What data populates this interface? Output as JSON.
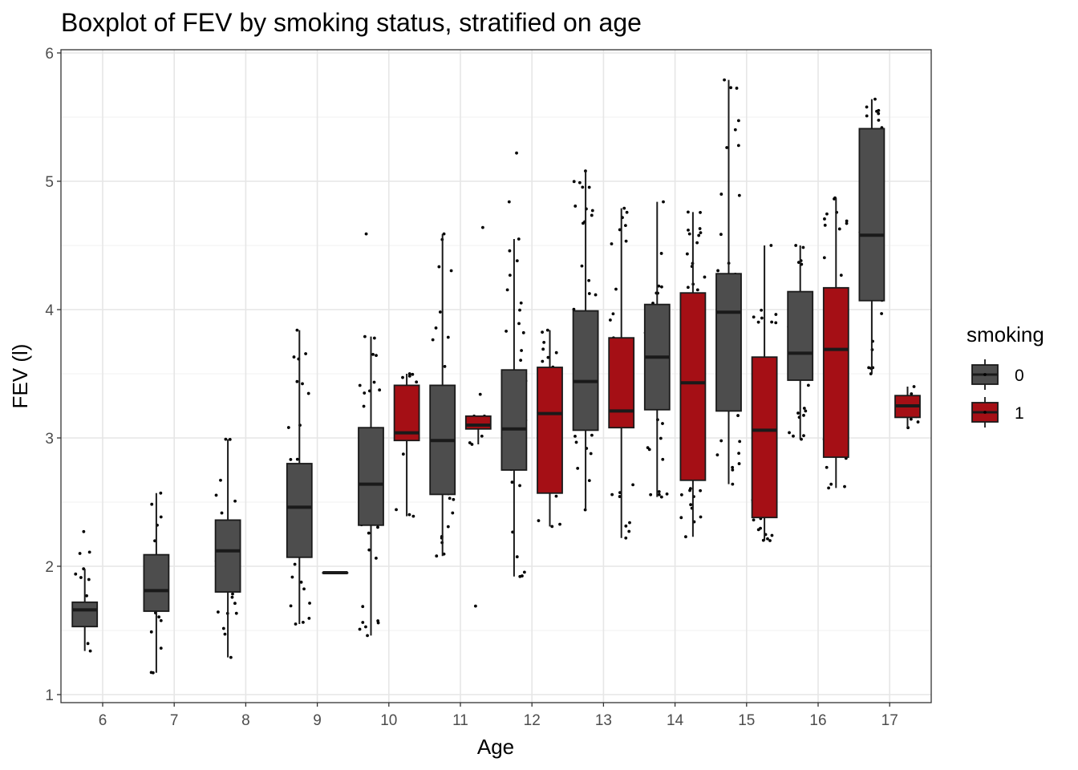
{
  "chart_data": {
    "type": "boxplot",
    "title": "Boxplot of FEV by smoking status, stratified on age",
    "xlabel": "Age",
    "ylabel": "FEV (l)",
    "ylim": [
      1,
      6
    ],
    "yticks": [
      1,
      2,
      3,
      4,
      5,
      6
    ],
    "categories": [
      "6",
      "7",
      "8",
      "9",
      "10",
      "11",
      "12",
      "13",
      "14",
      "15",
      "16",
      "17"
    ],
    "grid": true,
    "legend": {
      "title": "smoking",
      "position": "right"
    },
    "series": [
      {
        "name": "0",
        "color": "#4d4d4d",
        "boxes": [
          {
            "cat": "6",
            "min": 1.34,
            "q1": 1.53,
            "median": 1.66,
            "q3": 1.72,
            "max": 1.98,
            "outliers": [
              2.27,
              2.11,
              2.1
            ]
          },
          {
            "cat": "7",
            "min": 1.17,
            "q1": 1.65,
            "median": 1.81,
            "q3": 2.09,
            "max": 2.57,
            "outliers": []
          },
          {
            "cat": "8",
            "min": 1.29,
            "q1": 1.8,
            "median": 2.12,
            "q3": 2.36,
            "max": 2.99,
            "outliers": []
          },
          {
            "cat": "9",
            "min": 1.55,
            "q1": 2.07,
            "median": 2.46,
            "q3": 2.8,
            "max": 3.84,
            "outliers": []
          },
          {
            "cat": "10",
            "min": 1.46,
            "q1": 2.32,
            "median": 2.64,
            "q3": 3.08,
            "max": 3.79,
            "outliers": [
              4.59
            ]
          },
          {
            "cat": "11",
            "min": 2.08,
            "q1": 2.56,
            "median": 2.98,
            "q3": 3.41,
            "max": 4.59,
            "outliers": []
          },
          {
            "cat": "12",
            "min": 1.92,
            "q1": 2.75,
            "median": 3.07,
            "q3": 3.53,
            "max": 4.55,
            "outliers": [
              4.84,
              5.22
            ]
          },
          {
            "cat": "13",
            "min": 2.44,
            "q1": 3.06,
            "median": 3.44,
            "q3": 3.99,
            "max": 5.08,
            "outliers": []
          },
          {
            "cat": "14",
            "min": 2.54,
            "q1": 3.22,
            "median": 3.63,
            "q3": 4.04,
            "max": 4.84,
            "outliers": []
          },
          {
            "cat": "15",
            "min": 2.64,
            "q1": 3.21,
            "median": 3.98,
            "q3": 4.28,
            "max": 5.79,
            "outliers": []
          },
          {
            "cat": "16",
            "min": 2.99,
            "q1": 3.45,
            "median": 3.66,
            "q3": 4.14,
            "max": 4.5,
            "outliers": []
          },
          {
            "cat": "17",
            "min": 3.5,
            "q1": 4.07,
            "median": 4.58,
            "q3": 5.41,
            "max": 5.64,
            "outliers": []
          }
        ]
      },
      {
        "name": "1",
        "color": "#a50f15",
        "boxes": [
          {
            "cat": "9",
            "min": 1.95,
            "q1": 1.95,
            "median": 1.95,
            "q3": 1.95,
            "max": 1.95,
            "outliers": []
          },
          {
            "cat": "10",
            "min": 2.39,
            "q1": 2.98,
            "median": 3.04,
            "q3": 3.41,
            "max": 3.5,
            "outliers": []
          },
          {
            "cat": "11",
            "min": 2.95,
            "q1": 3.07,
            "median": 3.1,
            "q3": 3.17,
            "max": 3.17,
            "outliers": [
              4.64,
              1.69,
              3.34
            ]
          },
          {
            "cat": "12",
            "min": 2.31,
            "q1": 2.57,
            "median": 3.19,
            "q3": 3.55,
            "max": 3.84,
            "outliers": []
          },
          {
            "cat": "13",
            "min": 2.22,
            "q1": 3.08,
            "median": 3.21,
            "q3": 3.78,
            "max": 4.79,
            "outliers": []
          },
          {
            "cat": "14",
            "min": 2.23,
            "q1": 2.67,
            "median": 3.43,
            "q3": 4.13,
            "max": 4.76,
            "outliers": []
          },
          {
            "cat": "15",
            "min": 2.2,
            "q1": 2.38,
            "median": 3.06,
            "q3": 3.63,
            "max": 4.5,
            "outliers": []
          },
          {
            "cat": "16",
            "min": 2.61,
            "q1": 2.85,
            "median": 3.69,
            "q3": 4.17,
            "max": 4.87,
            "outliers": []
          },
          {
            "cat": "17",
            "min": 3.08,
            "q1": 3.16,
            "median": 3.25,
            "q3": 3.33,
            "max": 3.4,
            "outliers": []
          }
        ]
      }
    ]
  }
}
